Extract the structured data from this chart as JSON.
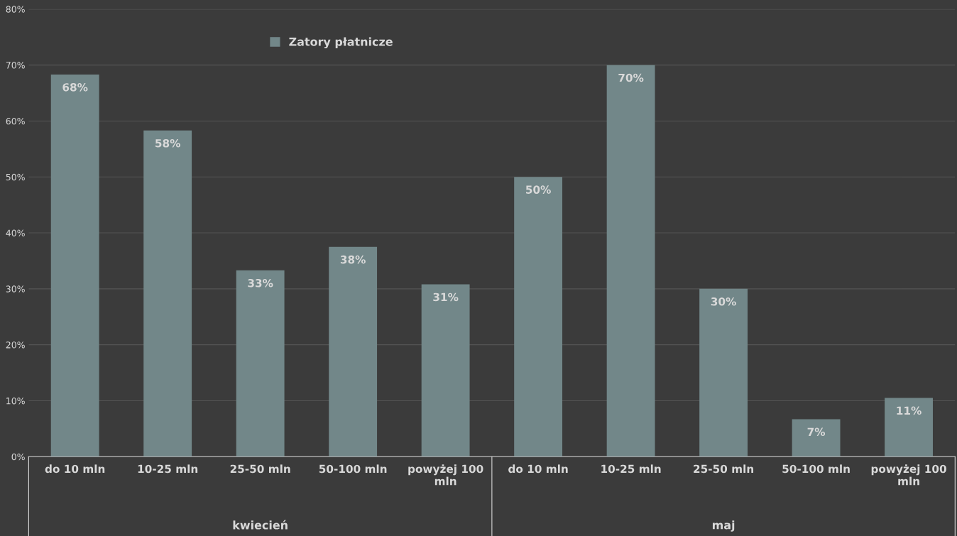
{
  "chart_data": {
    "type": "bar",
    "categories": [
      "do 10 mln",
      "10-25 mln",
      "25-50 mln",
      "50-100 mln",
      "powyżej 100 mln",
      "do 10 mln",
      "10-25 mln",
      "25-50 mln",
      "50-100 mln",
      "powyżej 100 mln"
    ],
    "series": [
      {
        "name": "Zatory płatnicze",
        "color": "#728789",
        "values": [
          68.3,
          58.3,
          33.3,
          37.5,
          30.8,
          50,
          70,
          30,
          6.7,
          10.5
        ],
        "value_labels": [
          "68%",
          "58%",
          "33%",
          "38%",
          "31%",
          "50%",
          "70%",
          "30%",
          "7%",
          "11%"
        ]
      }
    ],
    "annotations": [
      "kwiecień",
      "maj"
    ],
    "ylim": [
      0,
      80
    ],
    "yticks": [
      {
        "value": 0,
        "label": "0%"
      },
      {
        "value": 10,
        "label": "10%"
      },
      {
        "value": 20,
        "label": "20%"
      },
      {
        "value": 30,
        "label": "30%"
      },
      {
        "value": 40,
        "label": "40%"
      },
      {
        "value": 50,
        "label": "50%"
      },
      {
        "value": 60,
        "label": "60%"
      },
      {
        "value": 70,
        "label": "70%"
      },
      {
        "value": 80,
        "label": "80%"
      }
    ],
    "grid": "y",
    "legend": "top left"
  }
}
